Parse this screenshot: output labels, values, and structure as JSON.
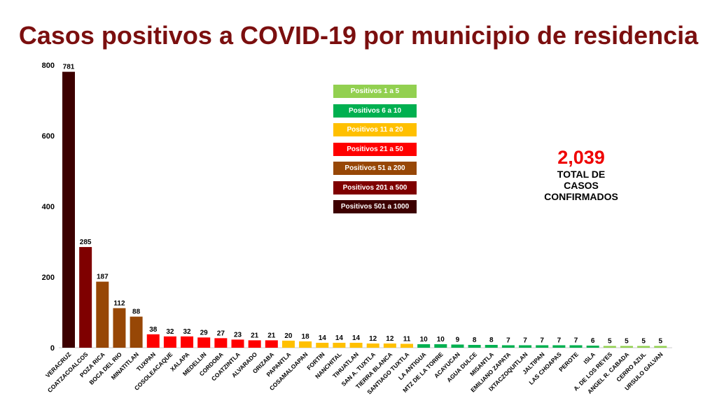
{
  "chart_data": {
    "type": "bar",
    "title": "Casos positivos a COVID-19  por municipio de residencia",
    "ylim": [
      0,
      800
    ],
    "yticks": [
      0,
      200,
      400,
      600,
      800
    ],
    "grid": false,
    "legend_placement": "top-center",
    "categories": [
      "VERACRUZ",
      "COATZACOALCOS",
      "POZA RICA",
      "BOCA DEL RIO",
      "MINATITLAN",
      "TUXPAN",
      "COSOLEACAQUE",
      "XALAPA",
      "MEDELLIN",
      "CORDOBA",
      "COATZINTLA",
      "ALVARADO",
      "ORIZABA",
      "PAPANTLA",
      "COSAMALOAPAN",
      "FORTIN",
      "NANCHITAL",
      "TIHUATLAN",
      "SAN A. TUXTLA",
      "TIERRA BLANCA",
      "SANTIAGO TUXTLA",
      "LA ANTIGUA",
      "MTZ DE LA TORRE",
      "ACAYUCAN",
      "AGUA DULCE",
      "MISANTLA",
      "EMILIANO ZAPATA",
      "IXTACZOQUITLAN",
      "JALTIPAN",
      "LAS CHOAPAS",
      "PEROTE",
      "ISLA",
      "A. DE LOS REYES",
      "ANGEL R. CABADA",
      "CERRO AZUL",
      "URSULO GALVAN"
    ],
    "values": [
      781,
      285,
      187,
      112,
      88,
      38,
      32,
      32,
      29,
      27,
      23,
      21,
      21,
      20,
      18,
      14,
      14,
      14,
      12,
      12,
      11,
      10,
      10,
      9,
      8,
      8,
      7,
      7,
      7,
      7,
      7,
      6,
      5,
      5,
      5,
      5
    ],
    "legend": [
      {
        "label": "Positivos 1 a 5",
        "min": 1,
        "max": 5,
        "color": "#92d050"
      },
      {
        "label": "Positivos 6 a 10",
        "min": 6,
        "max": 10,
        "color": "#00b050"
      },
      {
        "label": "Positivos 11 a 20",
        "min": 11,
        "max": 20,
        "color": "#ffc000"
      },
      {
        "label": "Positivos 21 a 50",
        "min": 21,
        "max": 50,
        "color": "#ff0000"
      },
      {
        "label": "Positivos 51 a 200",
        "min": 51,
        "max": 200,
        "color": "#974706"
      },
      {
        "label": "Positivos 201 a 500",
        "min": 201,
        "max": 500,
        "color": "#7f0000"
      },
      {
        "label": "Positivos 501 a 1000",
        "min": 501,
        "max": 1000,
        "color": "#3d0000"
      }
    ]
  },
  "total": {
    "value": "2,039",
    "label": "TOTAL DE CASOS CONFIRMADOS"
  }
}
